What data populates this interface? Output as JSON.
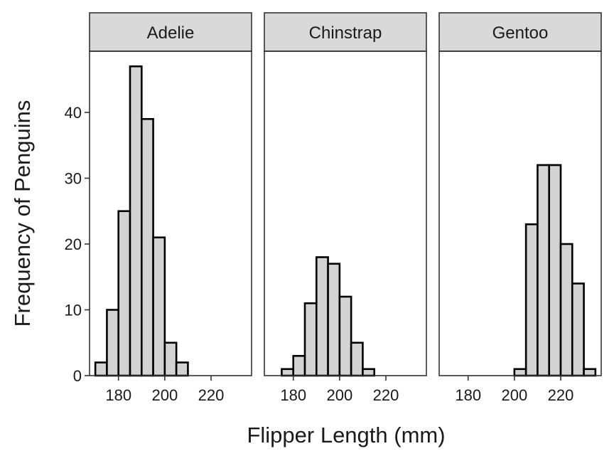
{
  "chart_data": {
    "type": "bar",
    "subtype": "faceted-histogram",
    "xlabel": "Flipper Length (mm)",
    "ylabel": "Frequency of Penguins",
    "xlim": [
      167.5,
      237.5
    ],
    "ylim": [
      0,
      49.3
    ],
    "x_ticks": [
      180,
      200,
      220
    ],
    "y_ticks": [
      0,
      10,
      20,
      30,
      40
    ],
    "bin_width": 5,
    "bar_fill": "#d3d3d3",
    "bar_stroke": "#000000",
    "strip_fill": "#d9d9d9",
    "grid": false,
    "facets": [
      {
        "label": "Adelie",
        "bins": [
          {
            "x": 172.5,
            "count": 2
          },
          {
            "x": 177.5,
            "count": 10
          },
          {
            "x": 182.5,
            "count": 25
          },
          {
            "x": 187.5,
            "count": 47
          },
          {
            "x": 192.5,
            "count": 39
          },
          {
            "x": 197.5,
            "count": 21
          },
          {
            "x": 202.5,
            "count": 5
          },
          {
            "x": 207.5,
            "count": 2
          }
        ]
      },
      {
        "label": "Chinstrap",
        "bins": [
          {
            "x": 177.5,
            "count": 1
          },
          {
            "x": 182.5,
            "count": 3
          },
          {
            "x": 187.5,
            "count": 11
          },
          {
            "x": 192.5,
            "count": 18
          },
          {
            "x": 197.5,
            "count": 17
          },
          {
            "x": 202.5,
            "count": 12
          },
          {
            "x": 207.5,
            "count": 5
          },
          {
            "x": 212.5,
            "count": 1
          }
        ]
      },
      {
        "label": "Gentoo",
        "bins": [
          {
            "x": 202.5,
            "count": 1
          },
          {
            "x": 207.5,
            "count": 23
          },
          {
            "x": 212.5,
            "count": 32
          },
          {
            "x": 217.5,
            "count": 32
          },
          {
            "x": 222.5,
            "count": 20
          },
          {
            "x": 227.5,
            "count": 14
          },
          {
            "x": 232.5,
            "count": 1
          }
        ]
      }
    ]
  }
}
